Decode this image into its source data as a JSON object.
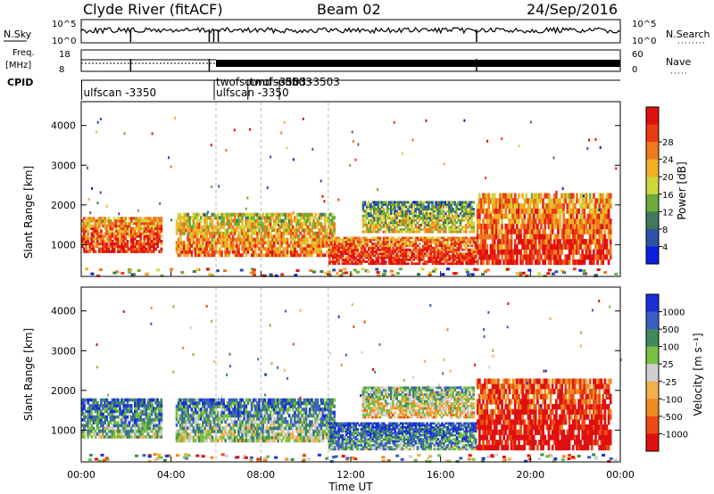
{
  "header": {
    "station": "Clyde River (fitACF)",
    "beam": "Beam 02",
    "date": "24/Sep/2016"
  },
  "top_panels": {
    "nsky_label": "N.Sky",
    "nsky_ticks": [
      "10^5",
      "10^0"
    ],
    "nsearch_label": "N.Search",
    "nsearch_ticks": [
      "10^5",
      "10^0"
    ],
    "freq_label_1": "Freq.",
    "freq_label_2": "[MHz]",
    "freq_ticks": [
      "18",
      "8"
    ],
    "nave_label": "Nave",
    "nave_ticks": [
      "60",
      "0"
    ],
    "cpid_label": "CPID",
    "cpid_entries": [
      {
        "text": "ulfscan  -3350",
        "hour": 0.1,
        "row": 2
      },
      {
        "text": "twofsound -3503",
        "hour": 6.0,
        "row": 1
      },
      {
        "text": "ulfscan  -3350",
        "hour": 6.0,
        "row": 2
      },
      {
        "text": "twofsound -3503",
        "hour": 7.5,
        "row": 1
      },
      {
        "text": "-3503",
        "hour": 8.9,
        "row": 1
      }
    ]
  },
  "chart_data": [
    {
      "type": "heatmap",
      "name": "power",
      "ylabel": "Slant Range [km]",
      "yticks": [
        "1000",
        "2000",
        "3000",
        "4000"
      ],
      "ylim": [
        200,
        4600
      ],
      "xlim": [
        0,
        24
      ],
      "colorbar_label": "Power [dB]",
      "colorbar_ticks": [
        "4",
        "8",
        "12",
        "16",
        "20",
        "24",
        "28"
      ],
      "colors": [
        "#0b1fe0",
        "#2d53a8",
        "#3f7a5a",
        "#6cab3b",
        "#cfd63a",
        "#f2b027",
        "#ef7a1d",
        "#ea3b12",
        "#e1100f"
      ],
      "regions": [
        {
          "hour": [
            0.0,
            3.6
          ],
          "range": [
            800,
            1700
          ],
          "level": 0.8
        },
        {
          "hour": [
            4.2,
            11.3
          ],
          "range": [
            700,
            1800
          ],
          "level": 0.65
        },
        {
          "hour": [
            11.0,
            17.6
          ],
          "range": [
            500,
            1200
          ],
          "level": 0.85
        },
        {
          "hour": [
            12.5,
            17.5
          ],
          "range": [
            1300,
            2100
          ],
          "level": 0.45
        },
        {
          "hour": [
            17.6,
            23.6
          ],
          "range": [
            500,
            2300
          ],
          "level": 0.8
        }
      ]
    },
    {
      "type": "heatmap",
      "name": "velocity",
      "ylabel": "Slant Range [km]",
      "yticks": [
        "1000",
        "2000",
        "3000",
        "4000"
      ],
      "ylim": [
        200,
        4600
      ],
      "xlim": [
        0,
        24
      ],
      "colorbar_label": "Velocity [m s⁻¹]",
      "colorbar_ticks": [
        "1000",
        "500",
        "100",
        "25",
        "-25",
        "-100",
        "-500",
        "-1000"
      ],
      "colors": [
        "#1a2fd6",
        "#3a5fc2",
        "#3f8a5a",
        "#77c043",
        "#cfcfcf",
        "#f2b04a",
        "#ef8a1e",
        "#ea4b14",
        "#e11010"
      ],
      "regions": [
        {
          "hour": [
            0.0,
            3.6
          ],
          "range": [
            800,
            1800
          ],
          "level": 0.3
        },
        {
          "hour": [
            4.2,
            11.3
          ],
          "range": [
            700,
            1800
          ],
          "level": 0.35
        },
        {
          "hour": [
            11.0,
            17.6
          ],
          "range": [
            500,
            1200
          ],
          "level": 0.25
        },
        {
          "hour": [
            12.5,
            17.5
          ],
          "range": [
            1300,
            2100
          ],
          "level": 0.5
        },
        {
          "hour": [
            17.6,
            23.6
          ],
          "range": [
            500,
            2300
          ],
          "level": 0.95
        }
      ]
    }
  ],
  "xaxis": {
    "label": "Time UT",
    "ticks": [
      "00:00",
      "04:00",
      "08:00",
      "12:00",
      "16:00",
      "20:00",
      "00:00"
    ]
  },
  "colors": {
    "frame": "#000000",
    "missing": "#d6d6d6"
  }
}
